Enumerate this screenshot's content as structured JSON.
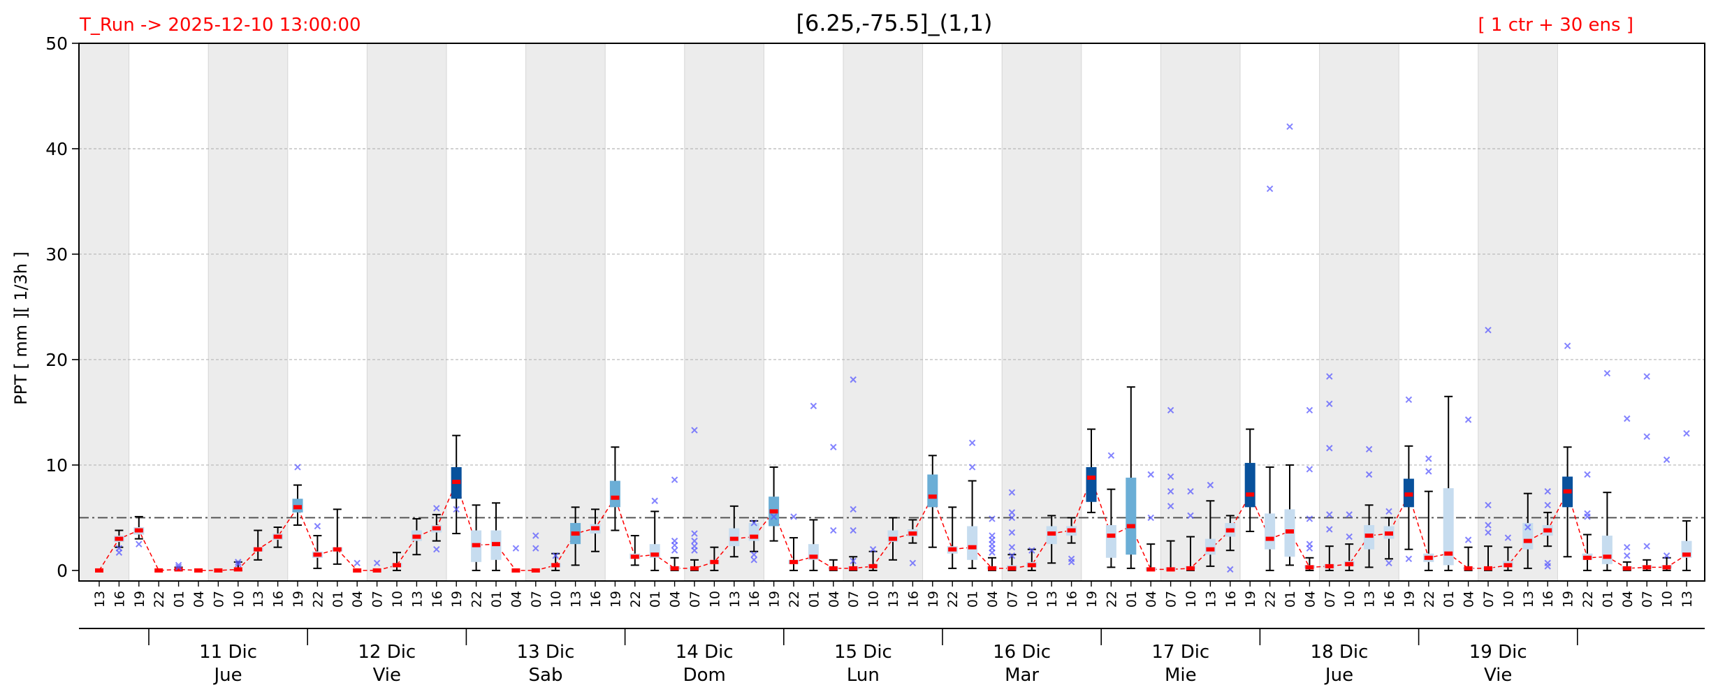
{
  "header": {
    "run_label": "T_Run -> 2025-12-10  13:00:00",
    "title": "[6.25,-75.5]_(1,1)",
    "members_label": "[ 1 ctr + 30 ens ]"
  },
  "colors": {
    "run_label": "#ff0000",
    "members_label": "#ff0000",
    "night_band": "#ececec",
    "median_line": "#ff0000",
    "box_light": "#c6dcef",
    "box_mid": "#6baed6",
    "box_dark": "#08519c",
    "outlier": "#5a5aff",
    "threshold_line": "#555555"
  },
  "chart_data": {
    "type": "box",
    "ylabel": "PPT  [ mm ][ 1/3h ]",
    "ylim": [
      -1,
      50
    ],
    "yticks": [
      0,
      10,
      20,
      30,
      40,
      50
    ],
    "threshold": 5,
    "grid": true,
    "x_tick_labels": [
      "13",
      "16",
      "19",
      "22",
      "01",
      "04",
      "07",
      "10",
      "13",
      "16",
      "19",
      "22",
      "01",
      "04",
      "07",
      "10",
      "13",
      "16",
      "19",
      "22",
      "01",
      "04",
      "07",
      "10",
      "13",
      "16",
      "19",
      "22",
      "01",
      "04",
      "07",
      "10",
      "13",
      "16",
      "19",
      "22",
      "01",
      "04",
      "07",
      "10",
      "13",
      "16",
      "19",
      "22",
      "01",
      "04",
      "07",
      "10",
      "13",
      "16",
      "19",
      "22",
      "01",
      "04",
      "07",
      "10",
      "13",
      "16",
      "19",
      "22",
      "01",
      "04",
      "07",
      "10",
      "13",
      "16",
      "19",
      "22",
      "01",
      "04",
      "07",
      "10",
      "13",
      "16",
      "19",
      "22",
      "01",
      "04",
      "07",
      "10",
      "13"
    ],
    "day_labels": [
      {
        "date": "11 Dic",
        "weekday": "Jue"
      },
      {
        "date": "12 Dic",
        "weekday": "Vie"
      },
      {
        "date": "13 Dic",
        "weekday": "Sab"
      },
      {
        "date": "14 Dic",
        "weekday": "Dom"
      },
      {
        "date": "15 Dic",
        "weekday": "Lun"
      },
      {
        "date": "16 Dic",
        "weekday": "Mar"
      },
      {
        "date": "17 Dic",
        "weekday": "Mie"
      },
      {
        "date": "18 Dic",
        "weekday": "Jue"
      },
      {
        "date": "19 Dic",
        "weekday": "Vie"
      }
    ],
    "median": [
      0,
      3,
      3.8,
      0,
      0.1,
      0,
      0,
      0.1,
      2,
      3.2,
      6,
      1.5,
      2,
      0,
      0,
      0.5,
      3.2,
      4,
      8.4,
      2.4,
      2.5,
      0,
      0,
      0.5,
      3.5,
      4,
      6.9,
      1.3,
      1.5,
      0.2,
      0.2,
      0.8,
      3,
      3.2,
      5.6,
      0.8,
      1.3,
      0.2,
      0.2,
      0.4,
      3,
      3.5,
      7,
      2,
      2.2,
      0.2,
      0.2,
      0.5,
      3.5,
      3.8,
      8.8,
      3.3,
      4.2,
      0.1,
      0.1,
      0.2,
      2,
      3.8,
      7.2,
      3,
      3.7,
      0.3,
      0.4,
      0.6,
      3.3,
      3.5,
      7.2,
      1.2,
      1.6,
      0.2,
      0.2,
      0.5,
      2.8,
      3.8,
      7.5,
      1.2,
      1.3,
      0.2,
      0.3,
      0.3,
      1.5
    ],
    "q1": [
      0,
      2.7,
      3.4,
      0,
      0.05,
      0,
      0,
      0.05,
      1.8,
      2.9,
      5.5,
      1.2,
      1.8,
      0,
      0,
      0.3,
      2.8,
      3.6,
      6.8,
      0.8,
      1,
      0,
      0,
      0.3,
      2.5,
      3.5,
      6,
      1.1,
      1.2,
      0.1,
      0.1,
      0.6,
      2.3,
      2.8,
      4.2,
      0.6,
      1,
      0.1,
      0.1,
      0.3,
      2.7,
      3.2,
      6,
      1.6,
      1,
      0.1,
      0.1,
      0.3,
      2.5,
      3.3,
      6.5,
      1.2,
      1.5,
      0,
      0.05,
      0.1,
      1.5,
      3.2,
      6,
      2,
      1.3,
      0.2,
      0.2,
      0.4,
      2,
      3,
      6,
      0.8,
      0.5,
      0.1,
      0.1,
      0.3,
      2,
      3.3,
      6,
      1,
      0.6,
      0.1,
      0.2,
      0.2,
      1.2
    ],
    "q3": [
      0,
      3.3,
      4.1,
      0,
      0.15,
      0,
      0,
      0.15,
      2.2,
      3.5,
      6.8,
      1.8,
      2.2,
      0,
      0,
      0.7,
      3.8,
      4.3,
      9.8,
      3.8,
      3.8,
      0,
      0,
      0.7,
      4.5,
      4.4,
      8.5,
      1.6,
      2.5,
      0.4,
      0.3,
      1,
      4,
      4.5,
      7,
      1,
      2.5,
      0.3,
      0.4,
      0.6,
      3.8,
      3.9,
      9.1,
      2.3,
      4.2,
      0.4,
      0.5,
      0.8,
      4.2,
      4.2,
      9.8,
      4.3,
      8.8,
      0.3,
      0.3,
      0.4,
      3,
      4.5,
      10.2,
      5.4,
      5.8,
      0.5,
      0.6,
      0.9,
      4.3,
      4.2,
      8.7,
      1.6,
      7.8,
      0.3,
      0.3,
      0.9,
      4.5,
      4.3,
      8.9,
      1.6,
      3.3,
      0.4,
      0.5,
      0.5,
      2.8
    ],
    "whisker_low": [
      0,
      2.2,
      3,
      0,
      0,
      0,
      0,
      0,
      1,
      2.2,
      4.3,
      0.2,
      0.6,
      0,
      0,
      0,
      1.5,
      2.8,
      3.5,
      0,
      0,
      0,
      0,
      0,
      0.5,
      1.8,
      3.8,
      0.5,
      0,
      0,
      0,
      0,
      1.3,
      1.8,
      2.8,
      0,
      0,
      0,
      0,
      0,
      1,
      2.6,
      2.2,
      0.2,
      0.2,
      0,
      0,
      0,
      0.7,
      2.6,
      5.5,
      0.3,
      0.2,
      0,
      0,
      0,
      0.4,
      1.9,
      3.7,
      0,
      0.5,
      0,
      0,
      0,
      0.3,
      1.1,
      2,
      0,
      0,
      0,
      0,
      0,
      0.2,
      2.3,
      1.3,
      0,
      0,
      0,
      0,
      0,
      0
    ],
    "whisker_high": [
      0,
      3.8,
      5.1,
      0,
      0.3,
      0,
      0,
      0.8,
      3.8,
      4.1,
      8.1,
      3.3,
      5.8,
      0,
      0,
      1.7,
      4.9,
      5.3,
      12.8,
      6.2,
      6.4,
      0,
      0,
      1.6,
      6,
      5.8,
      11.7,
      3.3,
      5.6,
      1.2,
      1,
      2.2,
      6.1,
      4.7,
      9.8,
      3.1,
      4.8,
      1,
      1.3,
      1.8,
      5,
      4.8,
      10.9,
      6,
      8.5,
      1.2,
      1.5,
      2,
      5.2,
      5,
      13.4,
      7.7,
      17.4,
      2.5,
      2.8,
      3.2,
      6.6,
      5.2,
      13.4,
      9.8,
      10,
      1.2,
      2.3,
      2.5,
      6.2,
      5,
      11.8,
      7.5,
      16.5,
      2.2,
      2.3,
      2.2,
      7.3,
      5.5,
      11.7,
      3.4,
      7.4,
      0.8,
      1,
      1.2,
      4.7
    ],
    "box_shade": [
      "none",
      "light",
      "light",
      "none",
      "none",
      "none",
      "none",
      "none",
      "light",
      "light",
      "mid",
      "light",
      "light",
      "none",
      "none",
      "light",
      "light",
      "light",
      "dark",
      "light",
      "light",
      "none",
      "none",
      "light",
      "mid",
      "light",
      "mid",
      "light",
      "light",
      "light",
      "light",
      "light",
      "light",
      "light",
      "mid",
      "light",
      "light",
      "light",
      "light",
      "light",
      "light",
      "light",
      "mid",
      "light",
      "light",
      "light",
      "light",
      "light",
      "light",
      "light",
      "dark",
      "light",
      "mid",
      "light",
      "light",
      "light",
      "light",
      "light",
      "dark",
      "light",
      "light",
      "light",
      "light",
      "light",
      "light",
      "light",
      "dark",
      "light",
      "light",
      "light",
      "light",
      "light",
      "light",
      "light",
      "dark",
      "light",
      "light",
      "light",
      "light",
      "light",
      "light"
    ],
    "outliers": [
      {
        "i": 1,
        "y": [
          2.1,
          1.7
        ]
      },
      {
        "i": 2,
        "y": [
          2.5
        ]
      },
      {
        "i": 4,
        "y": [
          0.3,
          0.5
        ]
      },
      {
        "i": 7,
        "y": [
          0.8,
          0.6
        ]
      },
      {
        "i": 10,
        "y": [
          9.8
        ]
      },
      {
        "i": 11,
        "y": [
          4.2
        ]
      },
      {
        "i": 13,
        "y": [
          0.7
        ]
      },
      {
        "i": 14,
        "y": [
          0.7
        ]
      },
      {
        "i": 17,
        "y": [
          5.9,
          2
        ]
      },
      {
        "i": 18,
        "y": [
          5.8
        ]
      },
      {
        "i": 21,
        "y": [
          2.1
        ]
      },
      {
        "i": 22,
        "y": [
          3.3,
          2.1
        ]
      },
      {
        "i": 23,
        "y": [
          1.4
        ]
      },
      {
        "i": 28,
        "y": [
          6.6
        ]
      },
      {
        "i": 29,
        "y": [
          8.6,
          2.8,
          2.4,
          1.9
        ]
      },
      {
        "i": 30,
        "y": [
          13.3,
          3.5,
          2.8,
          2.3,
          1.9
        ]
      },
      {
        "i": 33,
        "y": [
          4.5,
          1.5,
          1
        ]
      },
      {
        "i": 34,
        "y": [
          5.1
        ]
      },
      {
        "i": 35,
        "y": [
          5.1
        ]
      },
      {
        "i": 36,
        "y": [
          15.6
        ]
      },
      {
        "i": 37,
        "y": [
          11.7,
          3.8
        ]
      },
      {
        "i": 38,
        "y": [
          18.1,
          5.8,
          3.8,
          0.9
        ]
      },
      {
        "i": 39,
        "y": [
          2
        ]
      },
      {
        "i": 41,
        "y": [
          0.7
        ]
      },
      {
        "i": 44,
        "y": [
          12.1,
          9.8
        ]
      },
      {
        "i": 45,
        "y": [
          4.9,
          3.3,
          2.9,
          2.5,
          2.1,
          1.7
        ]
      },
      {
        "i": 46,
        "y": [
          7.4,
          5.5,
          5,
          3.6,
          2.2,
          1.4
        ]
      },
      {
        "i": 47,
        "y": [
          1.9
        ]
      },
      {
        "i": 49,
        "y": [
          1.1,
          0.8
        ]
      },
      {
        "i": 51,
        "y": [
          10.9
        ]
      },
      {
        "i": 53,
        "y": [
          9.1,
          5
        ]
      },
      {
        "i": 54,
        "y": [
          15.2,
          8.9,
          7.5,
          6.1
        ]
      },
      {
        "i": 55,
        "y": [
          7.5,
          5.2
        ]
      },
      {
        "i": 56,
        "y": [
          8.1
        ]
      },
      {
        "i": 57,
        "y": [
          0.1
        ]
      },
      {
        "i": 59,
        "y": [
          36.2
        ]
      },
      {
        "i": 60,
        "y": [
          42.1
        ]
      },
      {
        "i": 61,
        "y": [
          15.2,
          9.6,
          4.9,
          2.5,
          2.1
        ]
      },
      {
        "i": 62,
        "y": [
          18.4,
          15.8,
          11.6,
          5.3,
          3.9
        ]
      },
      {
        "i": 63,
        "y": [
          5.3,
          3.2
        ]
      },
      {
        "i": 64,
        "y": [
          11.5,
          9.1
        ]
      },
      {
        "i": 65,
        "y": [
          5.6,
          0.7
        ]
      },
      {
        "i": 66,
        "y": [
          16.2,
          1.1
        ]
      },
      {
        "i": 67,
        "y": [
          10.6,
          9.4
        ]
      },
      {
        "i": 69,
        "y": [
          14.3,
          2.9
        ]
      },
      {
        "i": 70,
        "y": [
          22.8,
          6.2,
          4.3,
          3.6
        ]
      },
      {
        "i": 71,
        "y": [
          3.1
        ]
      },
      {
        "i": 72,
        "y": [
          4.1
        ]
      },
      {
        "i": 73,
        "y": [
          7.5,
          6.2,
          0.7,
          0.4
        ]
      },
      {
        "i": 74,
        "y": [
          21.3
        ]
      },
      {
        "i": 75,
        "y": [
          9.1,
          5.4,
          5.1
        ]
      },
      {
        "i": 76,
        "y": [
          18.7
        ]
      },
      {
        "i": 77,
        "y": [
          14.4,
          2.2,
          1.4
        ]
      },
      {
        "i": 78,
        "y": [
          18.4,
          12.7,
          2.3
        ]
      },
      {
        "i": 79,
        "y": [
          10.5,
          1.4
        ]
      },
      {
        "i": 80,
        "y": [
          13
        ]
      }
    ]
  }
}
